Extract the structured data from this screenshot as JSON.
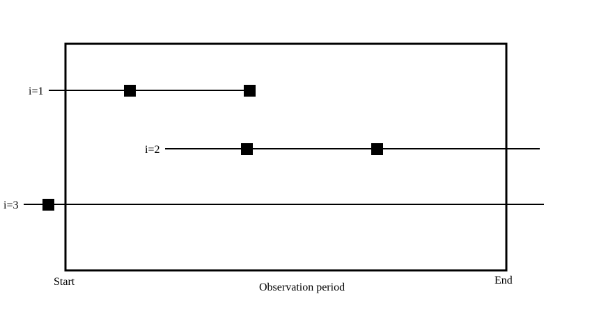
{
  "colors": {
    "line": "#000000",
    "event_marker": "#000000",
    "background": "#ffffff"
  },
  "observation_window": {
    "start_label": "Start",
    "end_label": "End",
    "period_label": "Observation period"
  },
  "subjects": [
    {
      "label": "i=1"
    },
    {
      "label": "i=2"
    },
    {
      "label": "i=3"
    }
  ]
}
